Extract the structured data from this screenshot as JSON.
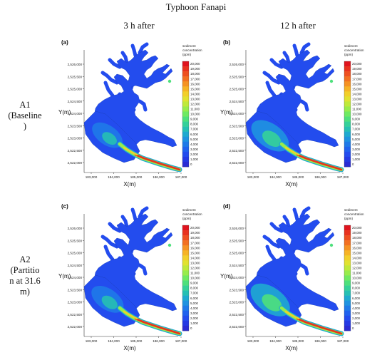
{
  "figure": {
    "title": "Typhoon Fanapi",
    "column_titles": [
      "3 h after",
      "12 h after"
    ],
    "row_labels": [
      "A1\n(Baseline\n)",
      "A2\n(Partitio\nn at 31.6\nm)"
    ]
  },
  "panels": [
    {
      "tag": "(a)",
      "scenario": "A1",
      "time": "3 h after",
      "plume": 0.45
    },
    {
      "tag": "(b)",
      "scenario": "A1",
      "time": "12 h after",
      "plume": 0.85
    },
    {
      "tag": "(c)",
      "scenario": "A2",
      "time": "3 h after",
      "plume": 0.55
    },
    {
      "tag": "(d)",
      "scenario": "A2",
      "time": "12 h after",
      "plume": 0.95
    }
  ],
  "axes": {
    "xlabel": "X(m)",
    "ylabel": "Y(m)",
    "x_ticks": [
      "183,000",
      "184,000",
      "185,000",
      "186,000",
      "187,000"
    ],
    "y_ticks": [
      "2,526,000",
      "2,525,500",
      "2,525,000",
      "2,524,500",
      "2,524,000",
      "2,523,500",
      "2,523,000",
      "2,522,500",
      "2,522,000"
    ]
  },
  "legend": {
    "title_line1": "sediment",
    "title_line2": "concentration",
    "unit": "(ppm)",
    "levels": [
      "20,000",
      "19,000",
      "18,000",
      "17,000",
      "16,000",
      "15,000",
      "14,000",
      "13,000",
      "12,000",
      "11,000",
      "10,000",
      "9,000",
      "8,000",
      "7,000",
      "6,000",
      "5,000",
      "4,000",
      "3,000",
      "2,000",
      "1,000",
      "0"
    ],
    "colors": [
      "#e0141e",
      "#e8321e",
      "#ee5020",
      "#f27021",
      "#f59223",
      "#f6b325",
      "#f2cf2a",
      "#e1e230",
      "#bfe93a",
      "#98ec4c",
      "#6fea62",
      "#4ee07c",
      "#35d199",
      "#26c0b3",
      "#1faad0",
      "#1f93e0",
      "#1f7ae8",
      "#2062ee",
      "#234cee",
      "#2439e4",
      "#2a2bd4"
    ]
  }
}
